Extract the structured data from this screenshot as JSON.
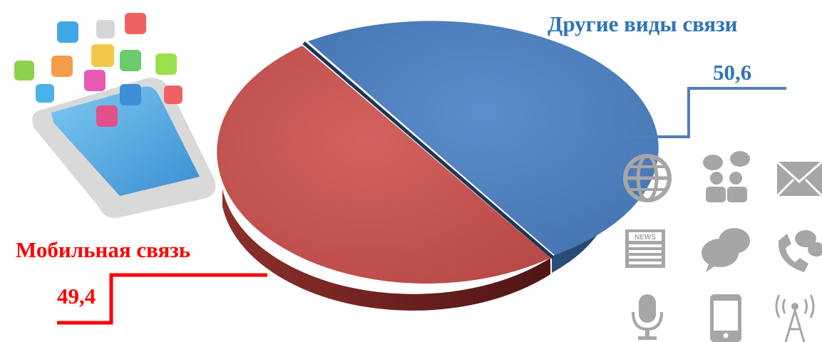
{
  "chart_data": {
    "type": "pie",
    "categories": [
      "Другие виды связи",
      "Мобильная связь"
    ],
    "values": [
      50.6,
      49.4
    ],
    "value_labels": [
      "50,6",
      "49,4"
    ],
    "colors": [
      "#4f7fbf",
      "#c0504d"
    ],
    "label_colors": [
      "#2e75b6",
      "#ff0000"
    ],
    "legend": "none",
    "style": "3d-exploded"
  },
  "decor": {
    "phone_illustration": "smartphone-with-app-icons",
    "icon_grid": [
      "globe-icon",
      "people-chat-icon",
      "envelope-icon",
      "news-icon",
      "speech-bubbles-icon",
      "phone-call-icon",
      "microphone-icon",
      "mobile-phone-icon",
      "antenna-icon"
    ],
    "icon_color": "#a6a6a6"
  }
}
